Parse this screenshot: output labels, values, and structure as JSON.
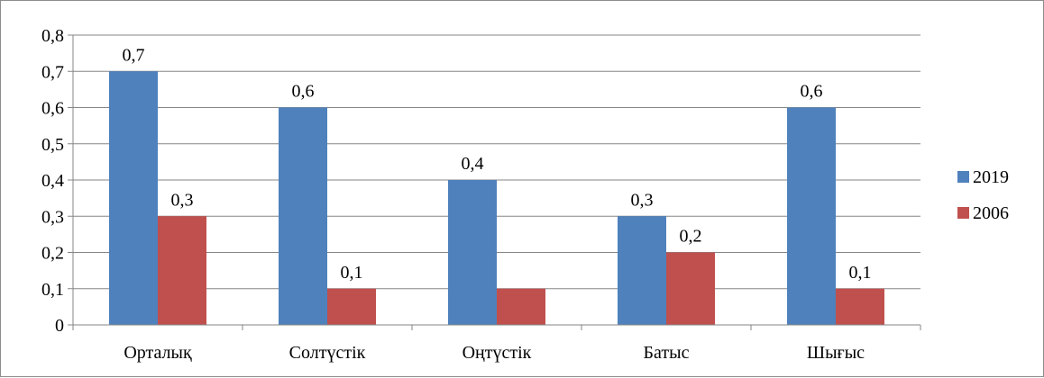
{
  "chart_data": {
    "type": "bar",
    "categories": [
      "Орталық",
      "Солтүстік",
      "Оңтүстік",
      "Батыс",
      "Шығыс"
    ],
    "series": [
      {
        "name": "2019",
        "values": [
          0.7,
          0.6,
          0.4,
          0.3,
          0.6
        ],
        "color": "#4f81bd",
        "data_labels": [
          "0,7",
          "0,6",
          "0,4",
          "0,3",
          "0,6"
        ]
      },
      {
        "name": "2006",
        "values": [
          0.3,
          0.1,
          0.1,
          0.2,
          0.1
        ],
        "color": "#c0504d",
        "data_labels": [
          "0,3",
          "0,1",
          "",
          "0,2",
          "0,1"
        ]
      }
    ],
    "ylim": [
      0,
      0.8
    ],
    "yticks": [
      0,
      0.1,
      0.2,
      0.3,
      0.4,
      0.5,
      0.6,
      0.7,
      0.8
    ],
    "ytick_labels": [
      "0",
      "0,1",
      "0,2",
      "0,3",
      "0,4",
      "0,5",
      "0,6",
      "0,7",
      "0,8"
    ],
    "grid": true,
    "legend_position": "right",
    "title": "",
    "xlabel": "",
    "ylabel": ""
  }
}
